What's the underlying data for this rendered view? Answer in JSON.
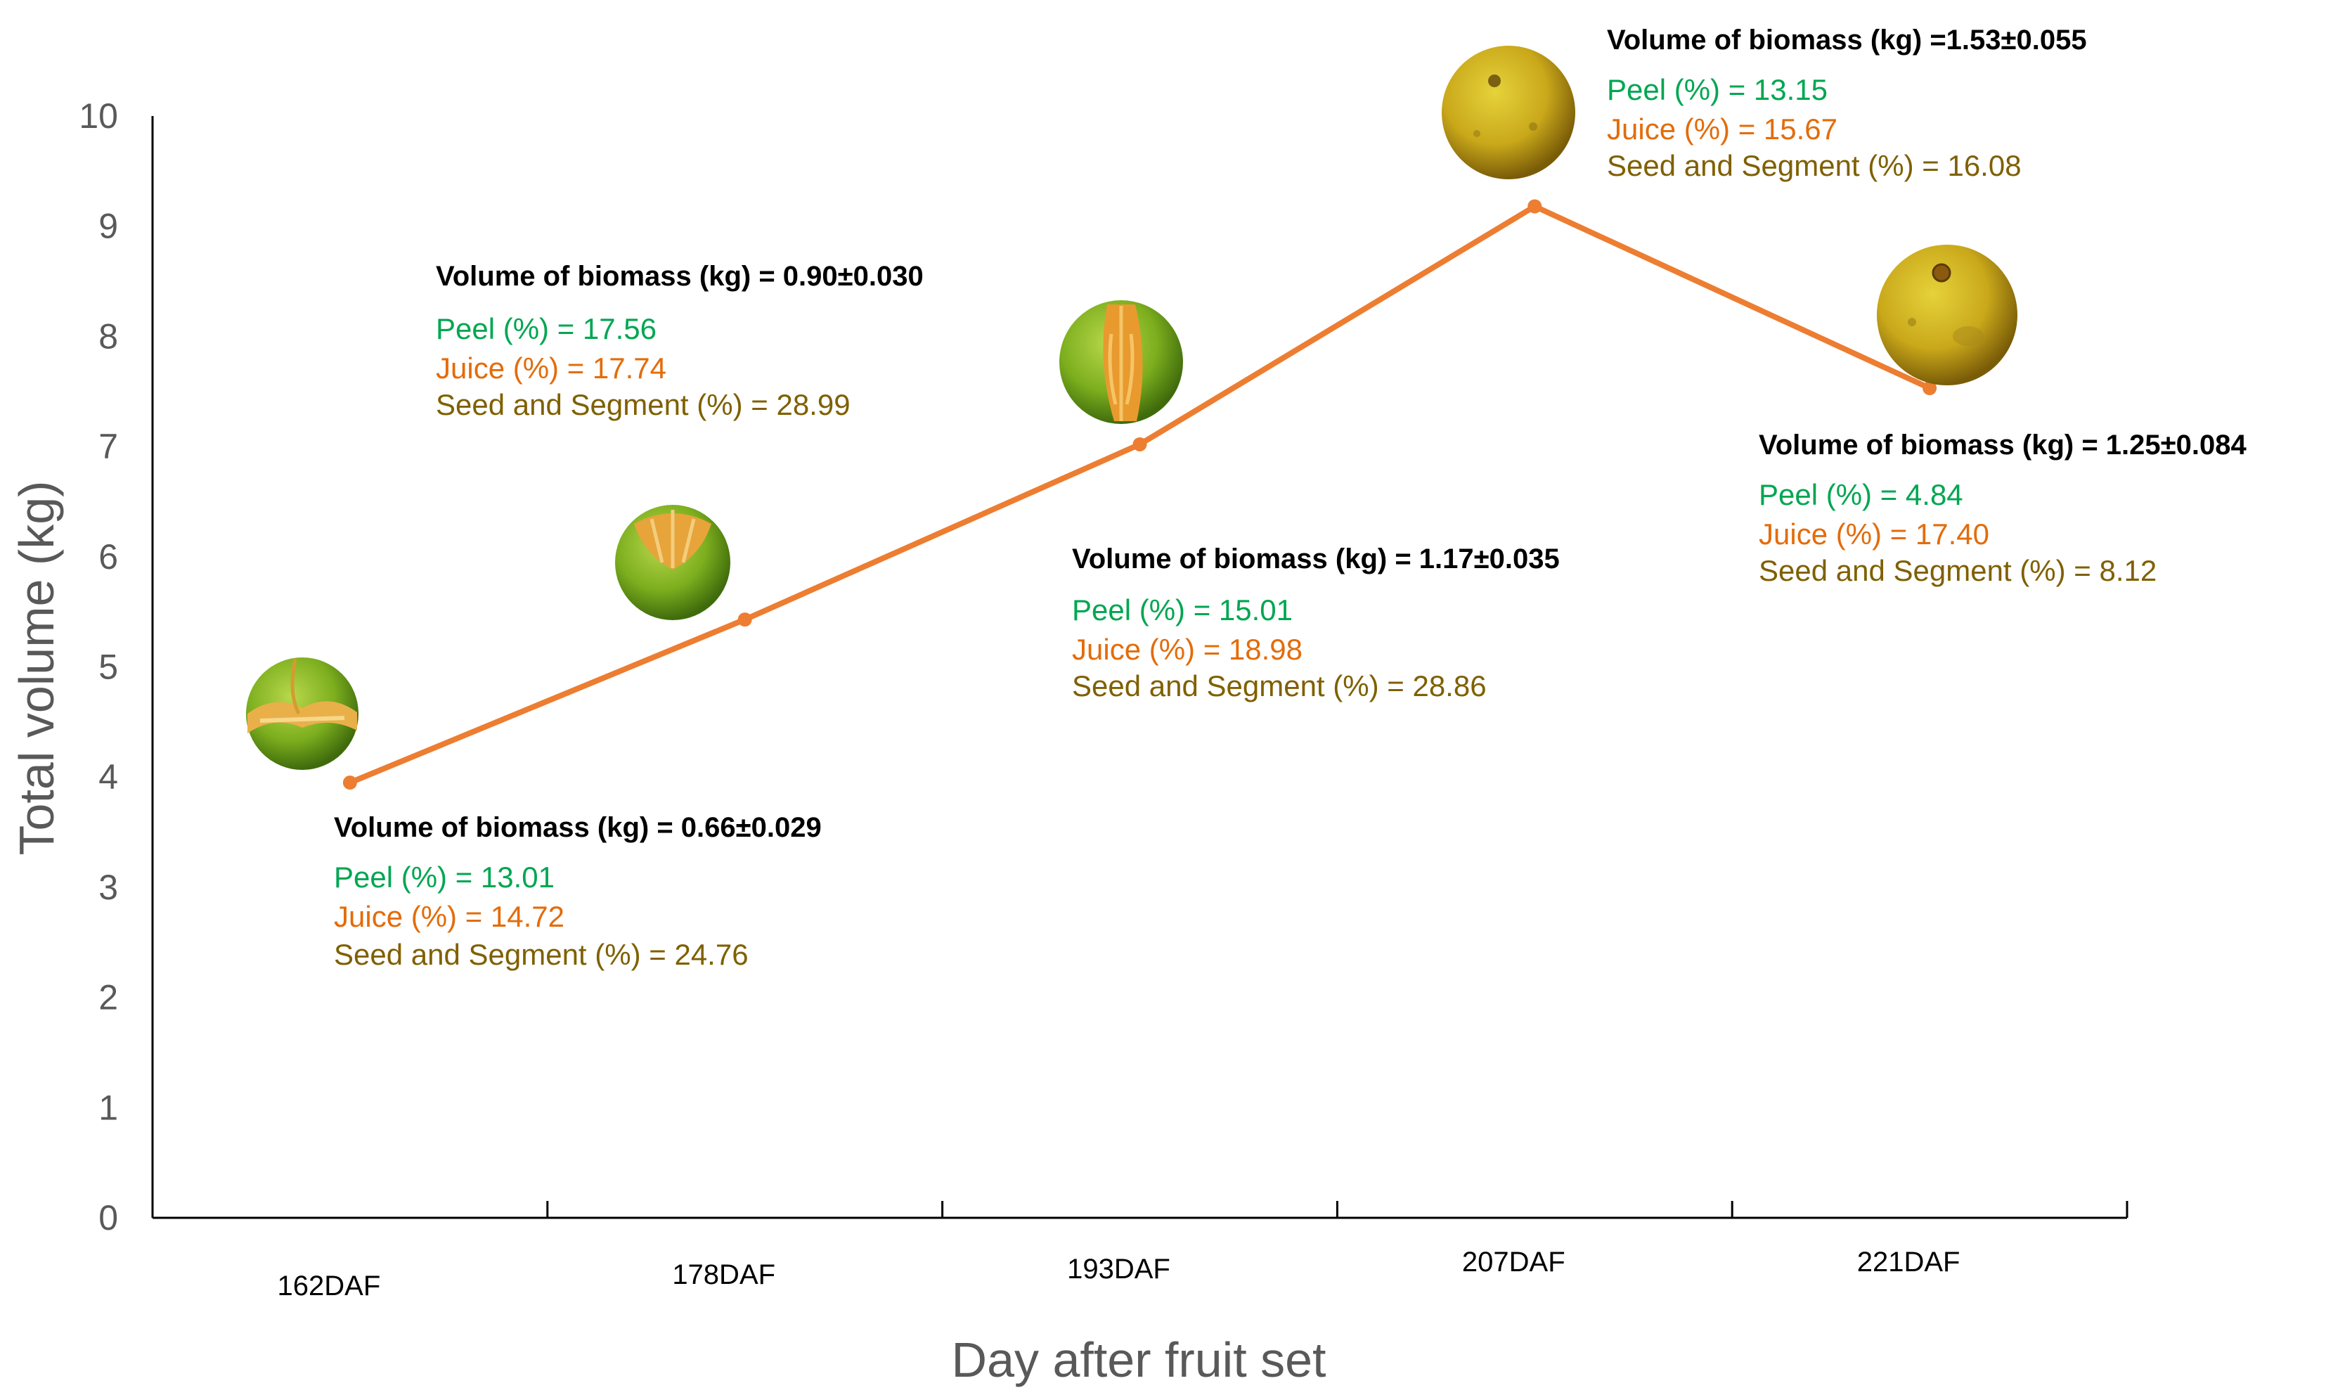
{
  "chart_data": {
    "type": "line",
    "title": "",
    "xlabel": "Day after fruit set",
    "ylabel": "Total volume (kg)",
    "ylim": [
      0,
      10
    ],
    "yticks": [
      "0",
      "1",
      "2",
      "3",
      "4",
      "5",
      "6",
      "7",
      "8",
      "9",
      "10"
    ],
    "categories": [
      "162DAF",
      "178DAF",
      "193DAF",
      "207DAF",
      "221DAF"
    ],
    "series": [
      {
        "values": [
          3.95,
          5.43,
          7.02,
          9.18,
          7.53
        ],
        "color": "#ED7D31"
      }
    ],
    "grid": false,
    "legend": "none",
    "annotations": [
      {
        "title": "Volume of biomass (kg) = 0.66±0.029",
        "peel": "Peel (%) = 13.01",
        "juice": "Juice (%) = 14.72",
        "seed": "Seed and Segment (%) = 24.76"
      },
      {
        "title": "Volume of biomass (kg) = 0.90±0.030",
        "peel": "Peel (%) = 17.56",
        "juice": "Juice (%) = 17.74",
        "seed": "Seed and Segment (%) = 28.99"
      },
      {
        "title": "Volume of biomass (kg) = 1.17±0.035",
        "peel": "Peel (%) = 15.01",
        "juice": "Juice (%) = 18.98",
        "seed": "Seed and Segment (%) = 28.86"
      },
      {
        "title": "Volume of biomass (kg) =1.53±0.055",
        "peel": "Peel (%) = 13.15",
        "juice": "Juice (%) = 15.67",
        "seed": "Seed and Segment (%) = 16.08"
      },
      {
        "title": "Volume of biomass (kg)  = 1.25±0.084",
        "peel": "Peel (%) = 4.84",
        "juice": "Juice (%) = 17.40",
        "seed": "Seed and Segment (%) = 8.12"
      }
    ],
    "annotation_colors": {
      "peel": "#00A651",
      "juice": "#E36C0A",
      "seed": "#7F6000"
    },
    "fruit_images": [
      {
        "icon": "half-peeled-green-orange-icon"
      },
      {
        "icon": "peeled-top-green-orange-icon"
      },
      {
        "icon": "split-green-orange-icon"
      },
      {
        "icon": "ripe-yellow-orange-icon"
      },
      {
        "icon": "ripe-yellow-orange-icon"
      }
    ]
  }
}
